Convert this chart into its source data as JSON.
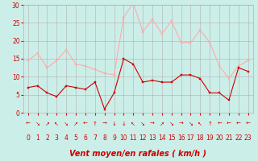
{
  "x": [
    0,
    1,
    2,
    3,
    4,
    5,
    6,
    7,
    8,
    9,
    10,
    11,
    12,
    13,
    14,
    15,
    16,
    17,
    18,
    19,
    20,
    21,
    22,
    23
  ],
  "wind_mean": [
    7,
    7.5,
    5.5,
    4.5,
    7.5,
    7,
    6.5,
    8.5,
    1,
    5.5,
    15,
    13.5,
    8.5,
    9,
    8.5,
    8.5,
    10.5,
    10.5,
    9.5,
    5.5,
    5.5,
    3.5,
    12.5,
    11.5
  ],
  "wind_gust": [
    14.5,
    16.5,
    12.5,
    14.5,
    17.5,
    13.5,
    13,
    12,
    11,
    10.5,
    26.5,
    30.5,
    22.5,
    26,
    22,
    25.5,
    19.5,
    19.5,
    23,
    19.5,
    13,
    9.5,
    13,
    14.5
  ],
  "wind_dirs": [
    "←",
    "↘",
    "↗",
    "↖",
    "↘",
    "↗",
    "←",
    "↑",
    "→",
    "↓",
    "↓",
    "↖",
    "↘",
    "→",
    "↗",
    "↘",
    "→",
    "↘",
    "↖",
    "↑",
    "←",
    "←",
    "←",
    "←"
  ],
  "ylim": [
    0,
    30
  ],
  "yticks": [
    0,
    5,
    10,
    15,
    20,
    25,
    30
  ],
  "xlabel": "Vent moyen/en rafales ( km/h )",
  "color_mean": "#cc0000",
  "color_gust": "#ffaaaa",
  "bg_color": "#cceee8",
  "grid_color": "#b0b0b0",
  "tick_color": "#cc0000",
  "label_color": "#cc0000",
  "xlabel_fontsize": 7,
  "tick_fontsize": 5.5
}
